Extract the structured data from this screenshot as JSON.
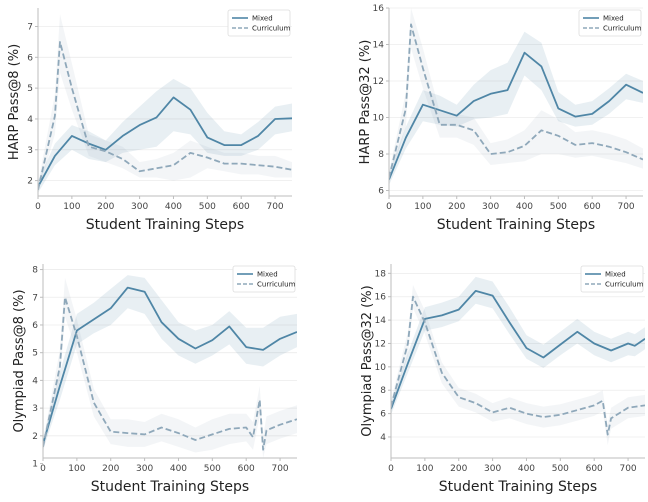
{
  "chart_data": [
    {
      "type": "line",
      "xlabel": "Student Training Steps",
      "ylabel": "HARP Pass@8 (%)",
      "xlim": [
        0,
        750
      ],
      "ylim": [
        1.5,
        7.6
      ],
      "xticks": [
        0,
        100,
        200,
        300,
        400,
        500,
        600,
        700
      ],
      "yticks": [
        2,
        3,
        4,
        5,
        6,
        7
      ],
      "legend_position": "top-right",
      "grid": "horizontal",
      "series": [
        {
          "name": "Mixed",
          "style": "solid",
          "color": "#4f86a6",
          "x": [
            0,
            50,
            100,
            150,
            200,
            250,
            300,
            350,
            400,
            450,
            500,
            550,
            600,
            650,
            700,
            750
          ],
          "y": [
            1.8,
            2.8,
            3.45,
            3.2,
            3.0,
            3.45,
            3.8,
            4.05,
            4.7,
            4.3,
            3.4,
            3.15,
            3.15,
            3.45,
            4.0,
            4.02
          ],
          "lower": [
            1.6,
            2.5,
            3.0,
            2.7,
            2.6,
            2.9,
            3.0,
            3.1,
            3.6,
            3.5,
            2.9,
            2.8,
            2.8,
            3.0,
            3.5,
            3.6
          ],
          "upper": [
            2.0,
            3.2,
            3.8,
            3.6,
            3.3,
            3.9,
            4.4,
            4.9,
            5.3,
            5.0,
            4.2,
            3.6,
            3.5,
            3.9,
            4.4,
            4.5
          ]
        },
        {
          "name": "Curriculum",
          "style": "dashed",
          "color": "#8fa8ba",
          "x": [
            0,
            50,
            65,
            100,
            150,
            200,
            250,
            300,
            350,
            400,
            450,
            500,
            550,
            600,
            650,
            700,
            750
          ],
          "y": [
            1.7,
            4.1,
            6.5,
            5.0,
            3.1,
            2.95,
            2.7,
            2.3,
            2.4,
            2.5,
            2.9,
            2.75,
            2.55,
            2.55,
            2.5,
            2.45,
            2.35
          ],
          "lower": [
            1.6,
            3.5,
            5.5,
            4.3,
            2.8,
            2.6,
            2.4,
            2.1,
            2.1,
            2.0,
            2.1,
            2.4,
            2.3,
            2.2,
            2.2,
            2.1,
            2.1
          ],
          "upper": [
            1.9,
            4.8,
            7.4,
            5.8,
            3.5,
            3.3,
            3.1,
            2.6,
            2.7,
            2.9,
            3.3,
            3.1,
            2.9,
            2.9,
            2.8,
            2.8,
            2.6
          ]
        }
      ]
    },
    {
      "type": "line",
      "xlabel": "Student Training Steps",
      "ylabel": "HARP Pass@32 (%)",
      "xlim": [
        0,
        750
      ],
      "ylim": [
        5.7,
        16.0
      ],
      "xticks": [
        0,
        100,
        200,
        300,
        400,
        500,
        600,
        700
      ],
      "yticks": [
        6,
        8,
        10,
        12,
        14,
        16
      ],
      "legend_position": "top-right",
      "grid": "horizontal",
      "series": [
        {
          "name": "Mixed",
          "style": "solid",
          "color": "#4f86a6",
          "x": [
            0,
            50,
            100,
            150,
            200,
            250,
            300,
            350,
            400,
            450,
            500,
            550,
            600,
            650,
            700,
            750
          ],
          "y": [
            6.6,
            8.9,
            10.7,
            10.4,
            10.1,
            10.9,
            11.3,
            11.5,
            13.55,
            12.8,
            10.5,
            10.05,
            10.2,
            10.9,
            11.8,
            11.35
          ],
          "lower": [
            6.3,
            8.3,
            9.8,
            9.6,
            9.5,
            9.9,
            10.0,
            10.2,
            12.3,
            11.5,
            9.8,
            9.5,
            9.6,
            10.2,
            11.0,
            10.8
          ],
          "upper": [
            7.0,
            9.5,
            11.5,
            11.2,
            10.7,
            11.8,
            12.6,
            13.0,
            14.7,
            14.1,
            11.4,
            10.7,
            10.9,
            11.6,
            12.4,
            12.0
          ]
        },
        {
          "name": "Curriculum",
          "style": "dashed",
          "color": "#8fa8ba",
          "x": [
            0,
            50,
            65,
            100,
            150,
            200,
            250,
            300,
            350,
            400,
            450,
            500,
            550,
            600,
            650,
            700,
            750
          ],
          "y": [
            6.7,
            10.5,
            15.1,
            12.7,
            9.6,
            9.6,
            9.3,
            8.0,
            8.1,
            8.45,
            9.3,
            9.0,
            8.5,
            8.6,
            8.4,
            8.1,
            7.7
          ],
          "lower": [
            6.4,
            9.5,
            13.8,
            11.6,
            8.9,
            8.9,
            8.5,
            7.4,
            7.5,
            7.6,
            8.0,
            8.0,
            7.8,
            7.9,
            7.7,
            7.5,
            7.2
          ],
          "upper": [
            7.0,
            11.4,
            16.0,
            13.8,
            10.3,
            10.2,
            10.0,
            8.6,
            8.8,
            9.3,
            10.4,
            9.9,
            9.2,
            9.3,
            9.1,
            8.8,
            8.3
          ]
        }
      ]
    },
    {
      "type": "line",
      "xlabel": "Student Training Steps",
      "ylabel": "Olympiad Pass@8 (%)",
      "xlim": [
        0,
        750
      ],
      "ylim": [
        1.2,
        8.2
      ],
      "xticks": [
        0,
        100,
        200,
        300,
        400,
        500,
        600,
        700
      ],
      "yticks": [
        1,
        2,
        3,
        4,
        5,
        6,
        7,
        8
      ],
      "legend_position": "top-right",
      "grid": "horizontal",
      "series": [
        {
          "name": "Mixed",
          "style": "solid",
          "color": "#4f86a6",
          "x": [
            0,
            50,
            100,
            150,
            200,
            250,
            300,
            350,
            400,
            450,
            500,
            550,
            600,
            650,
            700,
            750
          ],
          "y": [
            1.7,
            3.8,
            5.8,
            6.2,
            6.6,
            7.35,
            7.2,
            6.1,
            5.5,
            5.15,
            5.45,
            5.95,
            5.2,
            5.1,
            5.5,
            5.75
          ],
          "lower": [
            1.5,
            3.3,
            5.3,
            5.7,
            6.0,
            6.6,
            6.4,
            5.5,
            4.9,
            4.6,
            4.9,
            5.3,
            4.6,
            4.5,
            4.9,
            5.2
          ],
          "upper": [
            1.9,
            4.3,
            6.4,
            6.8,
            7.3,
            7.8,
            7.7,
            6.9,
            6.1,
            5.8,
            6.0,
            6.5,
            5.9,
            5.9,
            6.3,
            6.4
          ]
        },
        {
          "name": "Curriculum",
          "style": "dashed",
          "color": "#8fa8ba",
          "x": [
            0,
            50,
            65,
            100,
            150,
            200,
            250,
            300,
            350,
            400,
            450,
            500,
            550,
            600,
            620,
            640,
            650,
            660,
            700,
            750
          ],
          "y": [
            1.6,
            4.5,
            7.0,
            5.6,
            3.2,
            2.15,
            2.1,
            2.05,
            2.3,
            2.1,
            1.85,
            2.05,
            2.25,
            2.3,
            1.95,
            3.3,
            1.5,
            2.2,
            2.4,
            2.6
          ],
          "lower": [
            1.4,
            4.0,
            6.3,
            5.0,
            2.7,
            1.7,
            1.6,
            1.6,
            1.8,
            1.6,
            1.4,
            1.5,
            1.7,
            1.8,
            1.5,
            2.7,
            1.2,
            1.7,
            1.9,
            2.1
          ],
          "upper": [
            1.8,
            5.1,
            7.7,
            6.2,
            3.7,
            2.6,
            2.6,
            2.5,
            2.8,
            2.6,
            2.3,
            2.6,
            2.8,
            2.8,
            2.5,
            3.8,
            2.0,
            2.7,
            2.9,
            3.1
          ]
        }
      ]
    },
    {
      "type": "line",
      "xlabel": "Student Training Steps",
      "ylabel": "Olympiad Pass@32 (%)",
      "xlim": [
        0,
        750
      ],
      "ylim": [
        2.2,
        18.8
      ],
      "xticks": [
        0,
        100,
        200,
        300,
        400,
        500,
        600,
        700
      ],
      "yticks": [
        4,
        6,
        8,
        10,
        12,
        14,
        16,
        18
      ],
      "legend_position": "top-right",
      "grid": "horizontal",
      "series": [
        {
          "name": "Mixed",
          "style": "solid",
          "color": "#4f86a6",
          "x": [
            0,
            50,
            100,
            150,
            200,
            250,
            300,
            350,
            400,
            450,
            500,
            550,
            600,
            650,
            700,
            720,
            750
          ],
          "y": [
            6.4,
            10.3,
            14.1,
            14.4,
            14.9,
            16.5,
            16.1,
            13.8,
            11.6,
            10.8,
            11.9,
            13.0,
            12.0,
            11.4,
            12.0,
            11.8,
            12.4
          ],
          "lower": [
            5.9,
            9.5,
            13.1,
            13.4,
            13.9,
            15.4,
            15.0,
            12.8,
            10.7,
            9.9,
            11.0,
            12.0,
            11.0,
            10.4,
            11.0,
            10.9,
            11.5
          ],
          "upper": [
            6.9,
            11.2,
            15.1,
            15.5,
            16.0,
            17.7,
            17.3,
            15.1,
            12.7,
            11.9,
            13.0,
            14.1,
            13.0,
            12.4,
            13.0,
            12.8,
            13.4
          ]
        },
        {
          "name": "Curriculum",
          "style": "dashed",
          "color": "#8fa8ba",
          "x": [
            0,
            50,
            65,
            100,
            150,
            200,
            250,
            300,
            350,
            400,
            450,
            500,
            550,
            600,
            625,
            640,
            650,
            700,
            750
          ],
          "y": [
            6.6,
            12.0,
            16.0,
            13.8,
            9.5,
            7.4,
            6.9,
            6.1,
            6.5,
            6.0,
            5.7,
            5.9,
            6.3,
            6.7,
            7.1,
            4.2,
            5.6,
            6.5,
            6.7
          ],
          "lower": [
            6.1,
            11.0,
            15.0,
            12.8,
            8.6,
            6.6,
            6.1,
            5.3,
            5.6,
            5.1,
            4.8,
            5.0,
            5.4,
            5.8,
            6.2,
            3.3,
            4.7,
            5.6,
            5.8
          ],
          "upper": [
            7.1,
            13.0,
            17.0,
            14.8,
            10.4,
            8.2,
            7.7,
            6.9,
            7.4,
            6.9,
            6.6,
            6.8,
            7.2,
            7.6,
            8.0,
            5.1,
            6.5,
            7.4,
            7.6
          ]
        }
      ]
    }
  ]
}
